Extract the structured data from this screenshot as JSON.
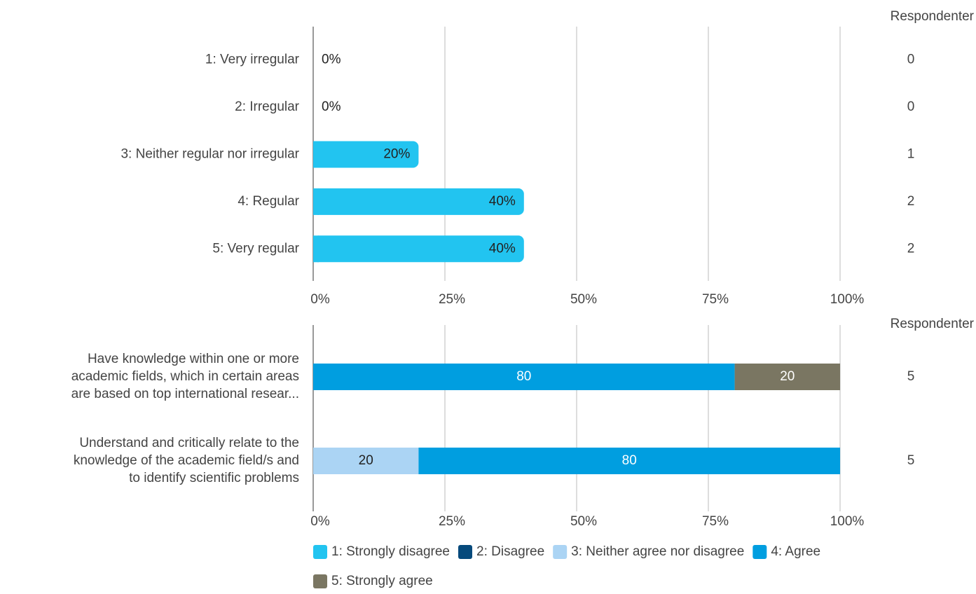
{
  "chart_data": [
    {
      "type": "bar",
      "orientation": "horizontal",
      "categories": [
        "1: Very irregular",
        "2: Irregular",
        "3: Neither regular nor irregular",
        "4: Regular",
        "5: Very regular"
      ],
      "values": [
        0,
        0,
        20,
        40,
        40
      ],
      "value_labels": [
        "0%",
        "0%",
        "20%",
        "40%",
        "40%"
      ],
      "color": "#22c4f0",
      "xlim": [
        0,
        100
      ],
      "xticks": [
        {
          "value": 0,
          "label": "0%"
        },
        {
          "value": 25,
          "label": "25%"
        },
        {
          "value": 50,
          "label": "50%"
        },
        {
          "value": 75,
          "label": "75%"
        },
        {
          "value": 100,
          "label": "100%"
        }
      ],
      "grid": true,
      "respondents_title": "Respondenter",
      "respondents": [
        0,
        0,
        1,
        2,
        2
      ]
    },
    {
      "type": "stacked_bar",
      "orientation": "horizontal",
      "categories": [
        [
          "Have knowledge within one or more",
          "academic fields, which in certain areas",
          "are based on  top international resear..."
        ],
        [
          "Understand and critically relate to the",
          "knowledge of the academic field/s and",
          "to identify scientific problems"
        ]
      ],
      "series": [
        {
          "name": "1: Strongly disagree",
          "color": "#22c4f0",
          "values": [
            0,
            0
          ]
        },
        {
          "name": "2: Disagree",
          "color": "#064a7c",
          "values": [
            0,
            0
          ]
        },
        {
          "name": "3: Neither agree nor disagree",
          "color": "#abd4f4",
          "values": [
            0,
            20
          ]
        },
        {
          "name": "4: Agree",
          "color": "#009ee0",
          "values": [
            80,
            80
          ]
        },
        {
          "name": "5: Strongly agree",
          "color": "#7a7662",
          "values": [
            20,
            0
          ]
        }
      ],
      "xlim": [
        0,
        100
      ],
      "xticks": [
        {
          "value": 0,
          "label": "0%"
        },
        {
          "value": 25,
          "label": "25%"
        },
        {
          "value": 50,
          "label": "50%"
        },
        {
          "value": 75,
          "label": "75%"
        },
        {
          "value": 100,
          "label": "100%"
        }
      ],
      "grid": true,
      "legend": "bottom",
      "respondents_title": "Respondenter",
      "respondents": [
        5,
        5
      ]
    }
  ]
}
